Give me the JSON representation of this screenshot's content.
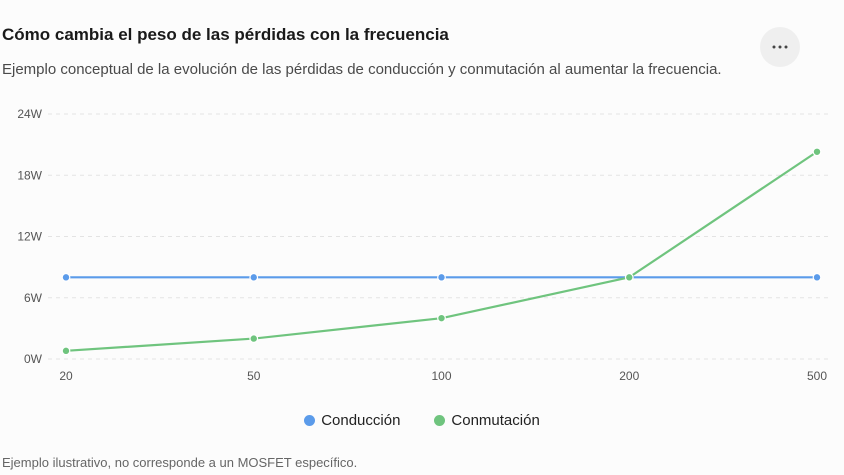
{
  "header": {
    "title": "Cómo cambia el peso de las pérdidas con la frecuencia",
    "subtitle": "Ejemplo conceptual de la evolución de las pérdidas de conducción y conmutación al aumentar la frecuencia.",
    "more_icon": "more-horizontal-icon"
  },
  "chart_data": {
    "type": "line",
    "title": "Cómo cambia el peso de las pérdidas con la frecuencia",
    "subtitle": "Ejemplo conceptual de la evolución de las pérdidas de conducción y conmutación al aumentar la frecuencia.",
    "categories": [
      "20",
      "50",
      "100",
      "200",
      "500"
    ],
    "y_ticks": [
      "0W",
      "6W",
      "12W",
      "18W",
      "24W"
    ],
    "ylim": [
      0,
      24
    ],
    "grid": true,
    "legend_position": "bottom",
    "series": [
      {
        "name": "Conducción",
        "color": "#5b9bea",
        "values": [
          8,
          8,
          8,
          8,
          8
        ]
      },
      {
        "name": "Conmutación",
        "color": "#6fc47e",
        "values": [
          0.8,
          2,
          4,
          8,
          20.3
        ]
      }
    ]
  },
  "footnote": "Ejemplo ilustrativo, no corresponde a un MOSFET específico."
}
